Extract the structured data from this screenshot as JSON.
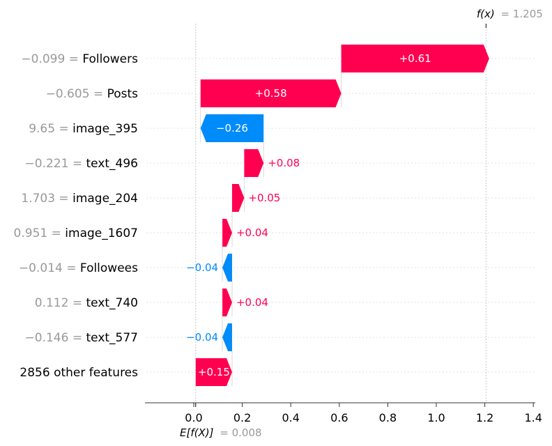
{
  "chart_data": {
    "type": "waterfall",
    "title": "",
    "fx_label": "f(x)",
    "fx_value": "1.205",
    "base_label": "E[f(X)]",
    "base_value": "0.008",
    "base": 0.008,
    "final": 1.205,
    "xlim": [
      -0.2,
      1.41
    ],
    "xticks": [
      0.0,
      0.2,
      0.4,
      0.6,
      0.8,
      1.0,
      1.2,
      1.4
    ],
    "xtick_labels": [
      "0.0",
      "0.2",
      "0.4",
      "0.6",
      "0.8",
      "1.0",
      "1.2",
      "1.4"
    ],
    "colors": {
      "positive": "#ff0051",
      "negative": "#008bfb",
      "muted": "#999999"
    },
    "features": [
      {
        "value": "−0.099",
        "name": "Followers",
        "contribution": 0.61,
        "label": "+0.61"
      },
      {
        "value": "−0.605",
        "name": "Posts",
        "contribution": 0.58,
        "label": "+0.58"
      },
      {
        "value": "9.65",
        "name": "image_395",
        "contribution": -0.26,
        "label": "−0.26"
      },
      {
        "value": "−0.221",
        "name": "text_496",
        "contribution": 0.08,
        "label": "+0.08"
      },
      {
        "value": "1.703",
        "name": "image_204",
        "contribution": 0.05,
        "label": "+0.05"
      },
      {
        "value": "0.951",
        "name": "image_1607",
        "contribution": 0.04,
        "label": "+0.04"
      },
      {
        "value": "−0.014",
        "name": "Followees",
        "contribution": -0.04,
        "label": "−0.04"
      },
      {
        "value": "0.112",
        "name": "text_740",
        "contribution": 0.04,
        "label": "+0.04"
      },
      {
        "value": "−0.146",
        "name": "text_577",
        "contribution": -0.04,
        "label": "−0.04"
      },
      {
        "value": "",
        "name": "2856 other features",
        "contribution": 0.15,
        "label": "+0.15"
      }
    ]
  }
}
